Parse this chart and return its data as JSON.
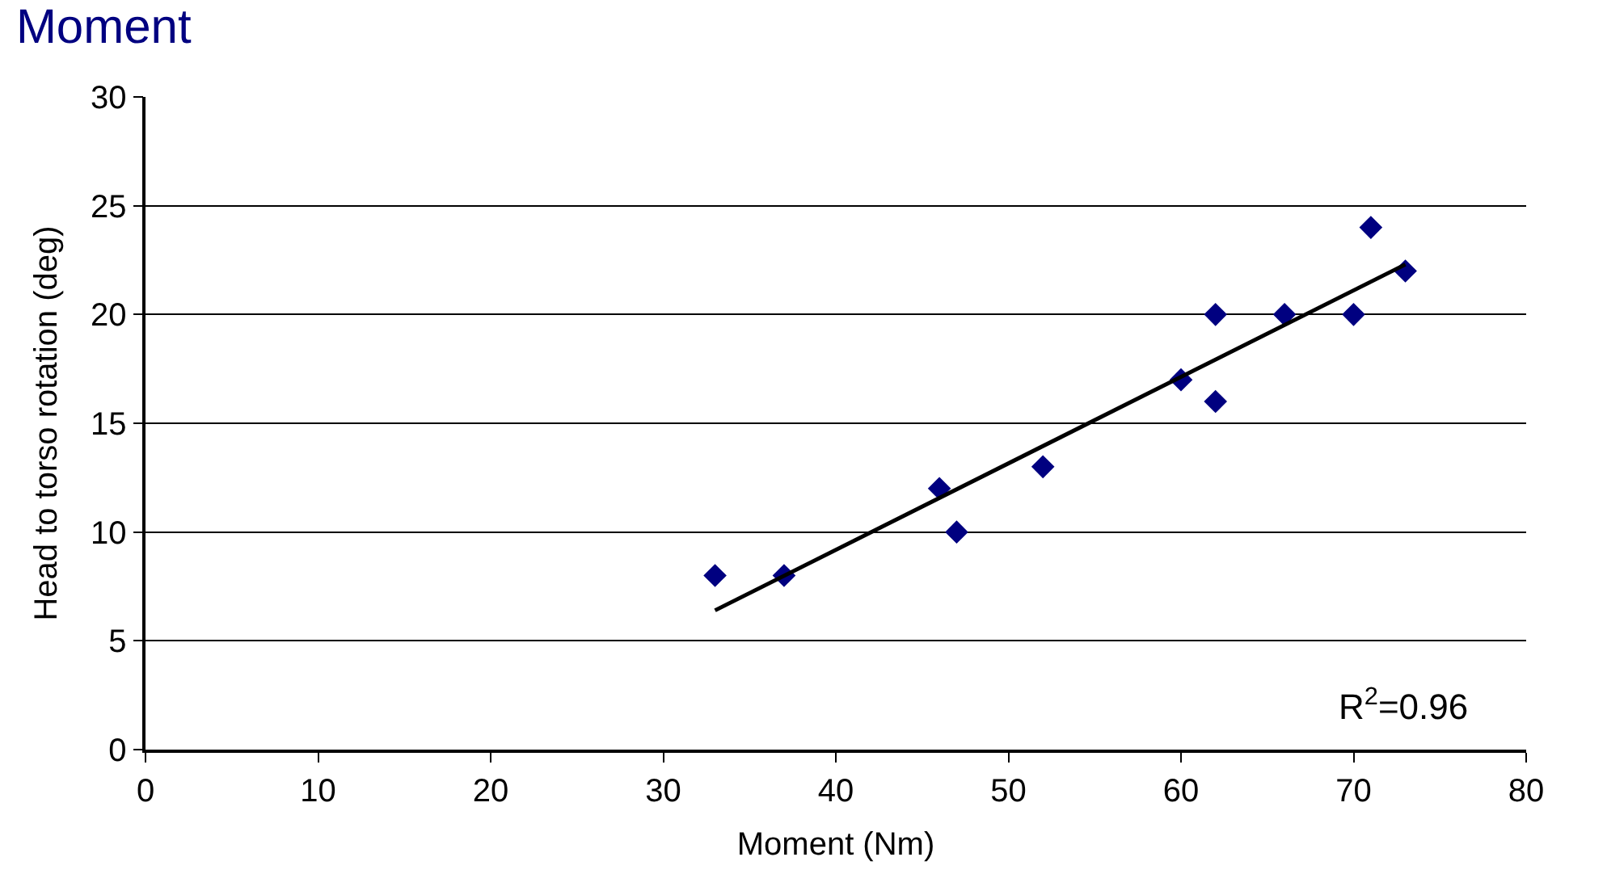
{
  "chart_data": {
    "type": "scatter",
    "title": "Moment",
    "xlabel": "Moment (Nm)",
    "ylabel": "Head to torso rotation (deg)",
    "xlim": [
      0,
      80
    ],
    "xticks": [
      0,
      10,
      20,
      30,
      40,
      50,
      60,
      70,
      80
    ],
    "ylim": [
      0,
      30
    ],
    "yticks": [
      0,
      5,
      10,
      15,
      20,
      25,
      30
    ],
    "grid": "y",
    "series": [
      {
        "marker": "diamond",
        "color": "#000080",
        "x": [
          33,
          37,
          46,
          47,
          52,
          60,
          62,
          62,
          66,
          70,
          71,
          73
        ],
        "values": [
          8,
          8,
          12,
          10,
          13,
          17,
          20,
          16,
          20,
          20,
          24,
          22
        ]
      },
      {
        "type": "line",
        "color": "#000000",
        "x": [
          33,
          73
        ],
        "values": [
          6.4,
          22.3
        ]
      }
    ],
    "annotations": [
      "R$^{2}$=0.96"
    ]
  }
}
